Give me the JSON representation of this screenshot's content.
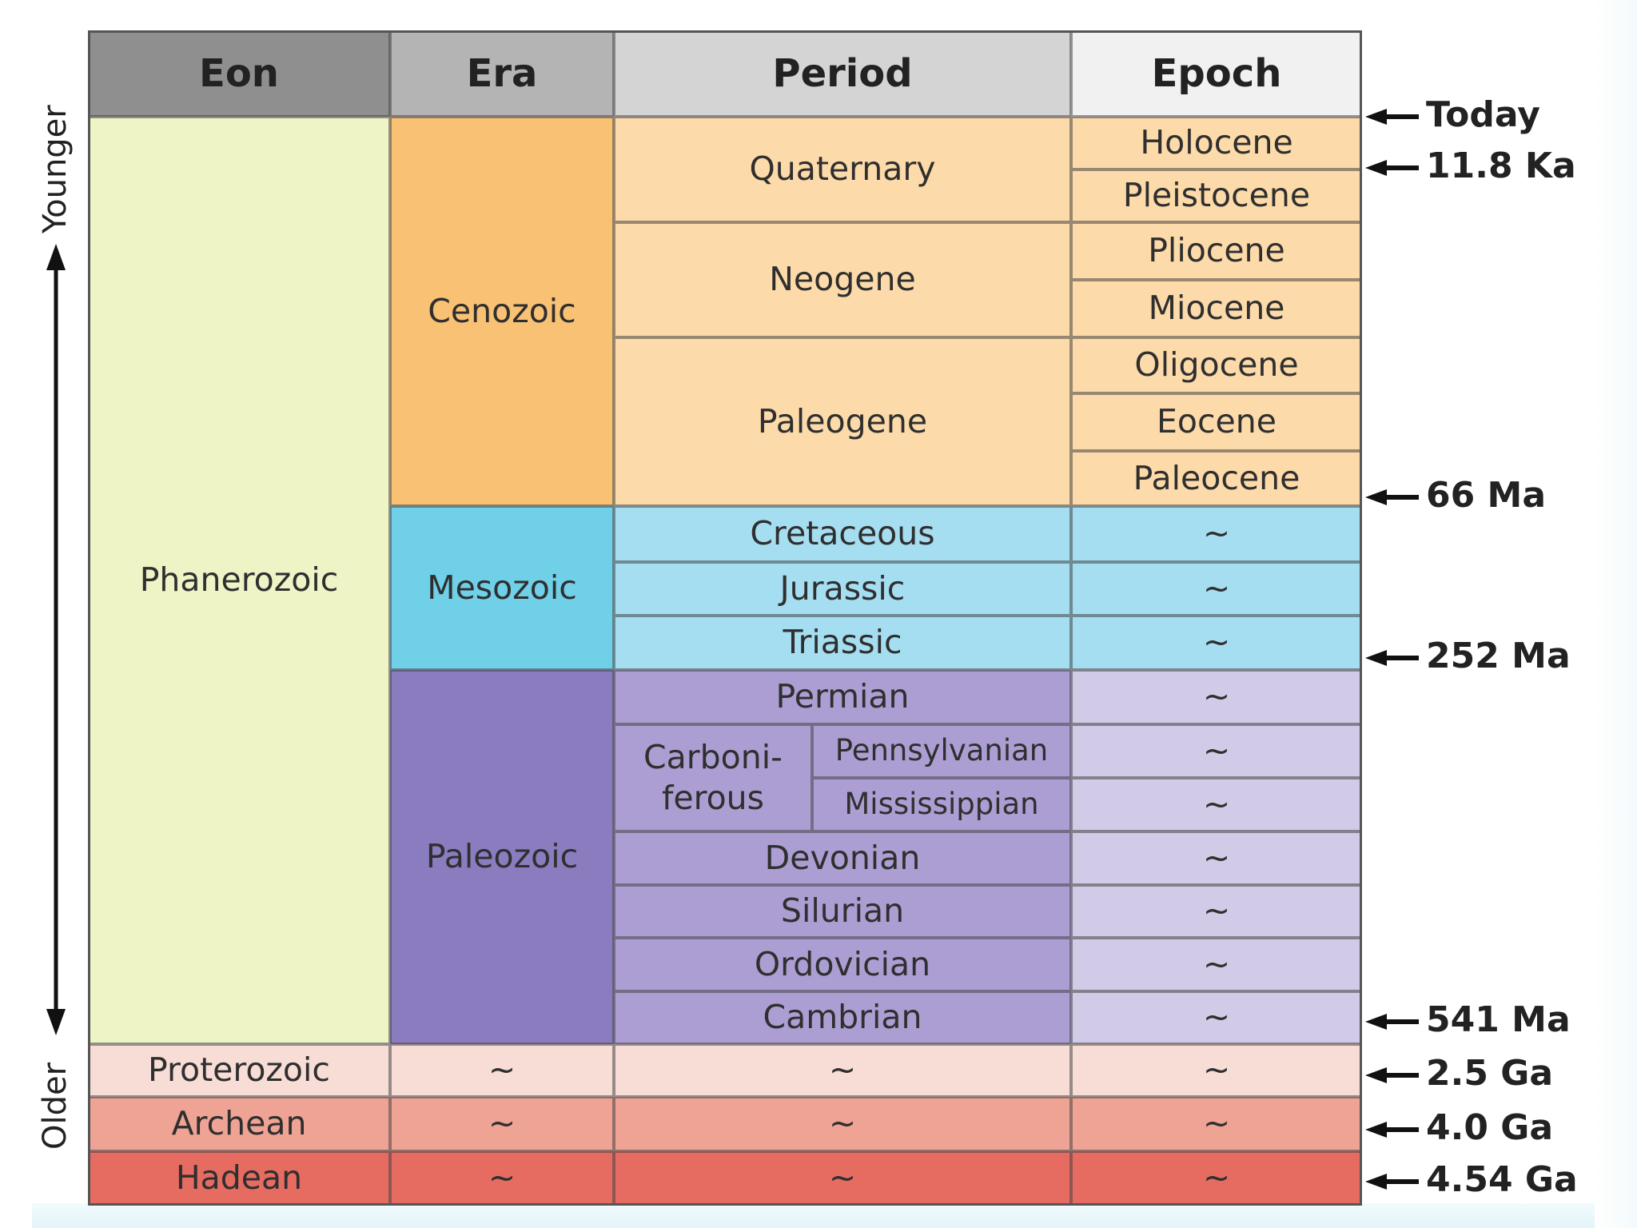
{
  "headers": [
    "Eon",
    "Era",
    "Period",
    "Epoch"
  ],
  "axis": {
    "younger_label": "Younger",
    "older_label": "Older"
  },
  "colors": {
    "header_eon": "#8f8f8f",
    "header_era": "#b4b4b4",
    "header_period": "#d4d4d4",
    "header_epoch": "#f1f1f1",
    "phanerozoic": "#eef4c6",
    "cenozoic": "#f9c173",
    "cenozoic_light": "#fcdaa9",
    "mesozoic": "#6fd0e8",
    "mesozoic_light": "#a5def0",
    "paleozoic": "#8b7cc0",
    "paleozoic_mid": "#ac9ed3",
    "paleozoic_light": "#d1cbe8",
    "proterozoic": "#f7ddd5",
    "archean": "#efa395",
    "hadean": "#e66c62"
  },
  "eons": [
    "Phanerozoic",
    "Proterozoic",
    "Archean",
    "Hadean"
  ],
  "eras": [
    "Cenozoic",
    "Mesozoic",
    "Paleozoic"
  ],
  "periods": {
    "quaternary": "Quaternary",
    "neogene": "Neogene",
    "paleogene": "Paleogene",
    "cretaceous": "Cretaceous",
    "jurassic": "Jurassic",
    "triassic": "Triassic",
    "permian": "Permian",
    "carboniferous": "Carboni-\nferous",
    "pennsylvanian": "Pennsylvanian",
    "mississippian": "Mississippian",
    "devonian": "Devonian",
    "silurian": "Silurian",
    "ordovician": "Ordovician",
    "cambrian": "Cambrian"
  },
  "epochs": [
    "Holocene",
    "Pleistocene",
    "Pliocene",
    "Miocene",
    "Oligocene",
    "Eocene",
    "Paleocene"
  ],
  "placeholder": "~",
  "boundaries": [
    "Today",
    "11.8 Ka",
    "66 Ma",
    "252 Ma",
    "541 Ma",
    "2.5 Ga",
    "4.0 Ga",
    "4.54 Ga"
  ]
}
